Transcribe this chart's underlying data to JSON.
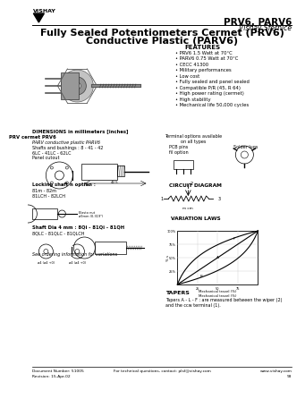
{
  "header_right": "PRV6, PARV6",
  "header_right2": "Vishay Sfernice",
  "title_line1": "Fully Sealed Potentiometers Cermet (PRV6)",
  "title_line2": "Conductive Plastic (PARV6)",
  "features_title": "FEATURES",
  "features": [
    "PRV6 1.5 Watt at 70°C",
    "PARV6 0.75 Watt at 70°C",
    "CECC 41300",
    "Military performances",
    "Low cost",
    "Fully sealed and panel sealed",
    "Compatible P/R (45, R 64)",
    "High power rating (cermet)",
    "High stability",
    "Mechanical life 50,000 cycles"
  ],
  "dim_title": "DIMENSIONS in millimeters [inches]",
  "dim_sub1": "PRV cermet PRV6",
  "dim_sub2": "PARV conductive plastic PARV6",
  "dim_sub3": "Shafts and bushings : 8 - 41 - 42",
  "dim_sub4": "6LC - 41LC - 62LC",
  "panel_cutout": "Panel cutout",
  "terminal_txt": "Terminal options available\non all types",
  "pcb_txt": "PCB pins\nfil option",
  "solder_txt": "Solder lugs",
  "locking_title": "Locking shaft n option :",
  "locking_sub": "81m - 82m\n81LCH - 82LCH",
  "shaft_title": "Shaft Dia 4 mm : 8Qi - 81Qi - 81QH",
  "shaft_sub": "8QLC - 81QLC - 81QLCH",
  "circuit_title": "CIRCUIT DIAGRAM",
  "variation_title": "VARIATION LAWS",
  "var_ymax": "% s",
  "var_y100": "100%",
  "var_y75": "75%",
  "var_y50": "50%",
  "var_y25": "25%",
  "var_xlabel": "Mechanical travel (%)",
  "var_xlabel2": "Mechanical travel (%)",
  "tapers_title": "TAPERS",
  "tapers_text": "Tapers A - L - F : are measured between the wiper (2)\nand the ccw terminal (1).",
  "ordering_txt": "See ordering information for variations",
  "footer_doc": "Document Number: 51005",
  "footer_rev": "Revision: 15-Apr-02",
  "footer_contact": "For technical questions, contact: plsf@vishay.com",
  "footer_web": "www.vishay.com",
  "footer_page": "93",
  "bg_color": "#ffffff"
}
